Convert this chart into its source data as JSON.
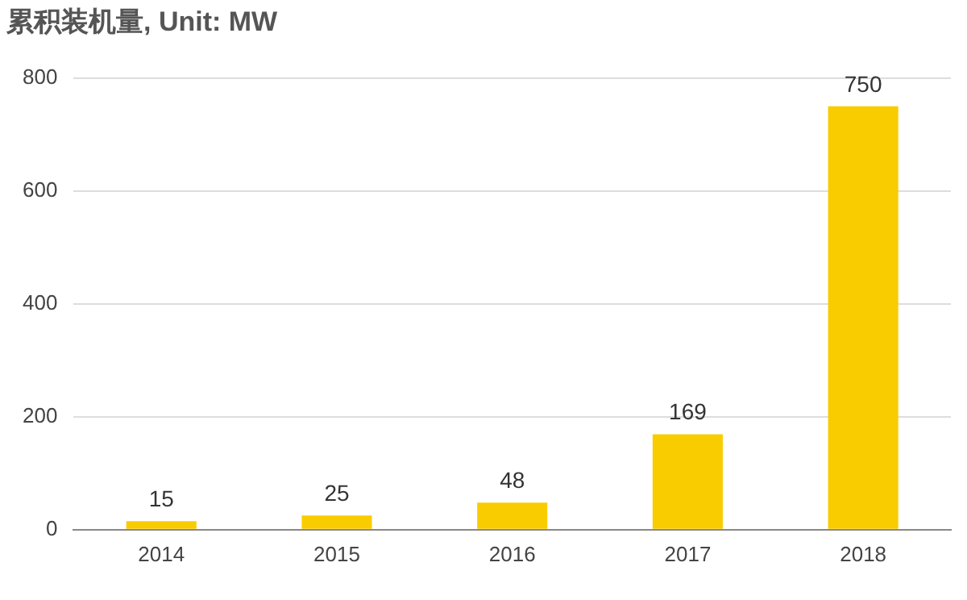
{
  "chart_data": {
    "type": "bar",
    "title": "累积装机量, Unit: MW",
    "categories": [
      "2014",
      "2015",
      "2016",
      "2017",
      "2018"
    ],
    "values": [
      15,
      25,
      48,
      169,
      750
    ],
    "color": "#f9cc00",
    "ylim": [
      0,
      800
    ],
    "yticks": [
      0,
      200,
      400,
      600,
      800
    ],
    "grid": "y",
    "data_labels": true
  }
}
